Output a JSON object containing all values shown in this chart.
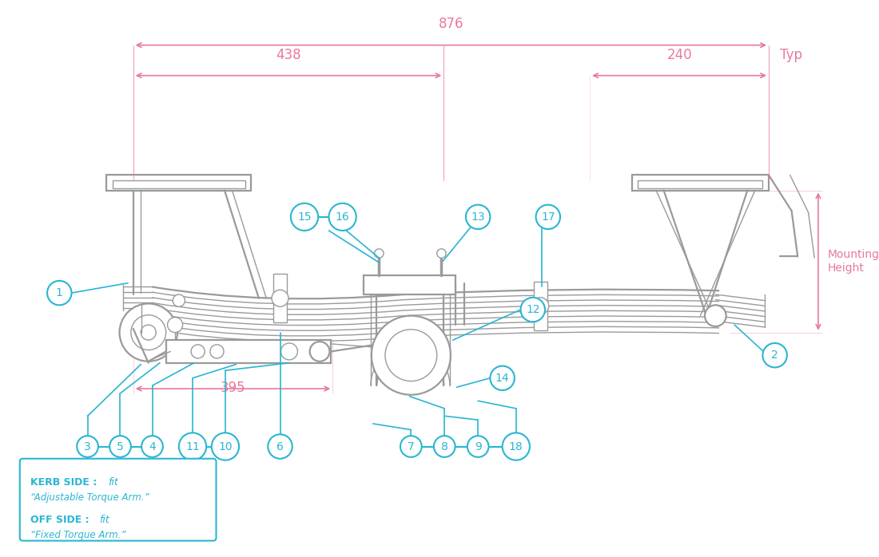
{
  "bg_color": "#ffffff",
  "line_color": "#9a9a9a",
  "cyan_color": "#29b6d2",
  "pink_color": "#e8799a",
  "dim_876": "876",
  "dim_438": "438",
  "dim_240": "240",
  "dim_395": "395",
  "dim_typ": "Typ",
  "mounting_height": "Mounting\nHeight",
  "kerb_line1_bold": "KERB SIDE : ",
  "kerb_line1_italic": "fit",
  "kerb_line2": "“Adjustable Torque Arm.”",
  "kerb_line3_bold": "OFF SIDE : ",
  "kerb_line3_italic": "fit",
  "kerb_line4": "“Fixed Torque Arm.”"
}
